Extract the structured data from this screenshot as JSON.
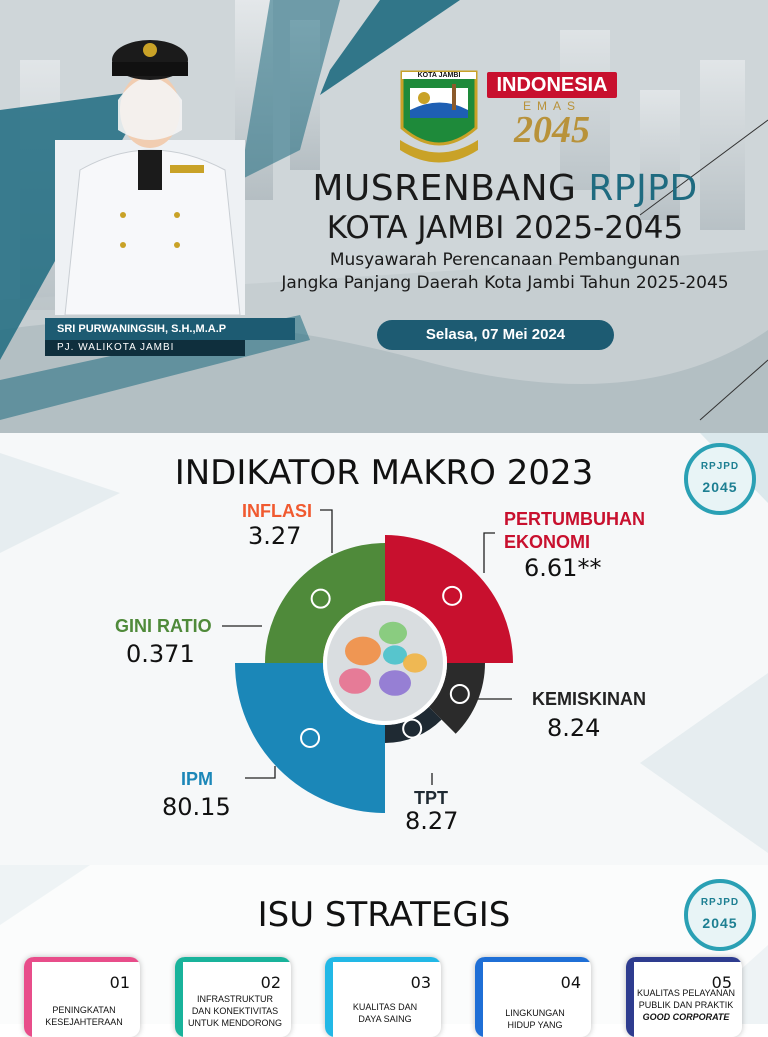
{
  "hero": {
    "title_main": "MUSRENBANG",
    "title_accent": "RPJPD",
    "title_line2": "KOTA JAMBI 2025-2045",
    "subtitle_line1": "Musyawarah Perencanaan Pembangunan",
    "subtitle_line2": "Jangka Panjang Daerah Kota Jambi Tahun 2025-2045",
    "date": "Selasa, 07 Mei 2024",
    "person_name": "SRI PURWANINGSIH, S.H.,M.A.P",
    "person_role": "PJ. WALIKOTA JAMBI",
    "crest_text": "KOTA JAMBI",
    "emas_word": "INDONESIA",
    "emas_sub": "EMAS",
    "emas_year": "2045"
  },
  "makro": {
    "title": "INDIKATOR MAKRO 2023",
    "badge_text": "RPJPD",
    "badge_year": "2045"
  },
  "chart_data": {
    "type": "pie",
    "title": "INDIKATOR MAKRO 2023",
    "indicators": [
      {
        "name": "INFLASI",
        "value": "3.27",
        "color": "#f05a30",
        "icon": "chart-money-icon"
      },
      {
        "name": "PERTUMBUHAN EKONOMI",
        "name_line1": "PERTUMBUHAN",
        "name_line2": "EKONOMI",
        "value": "6.61**",
        "color": "#c8102e",
        "icon": "growth-icon"
      },
      {
        "name": "KEMISKINAN",
        "value": "8.24",
        "color": "#2b2b2b",
        "icon": "poverty-icon"
      },
      {
        "name": "TPT",
        "value": "8.27",
        "color": "#1f2a33",
        "icon": "briefcase-icon"
      },
      {
        "name": "IPM",
        "value": "80.15",
        "color": "#1b87b8",
        "icon": "people-icon"
      },
      {
        "name": "GINI RATIO",
        "value": "0.371",
        "color": "#4f8a3a",
        "icon": "balance-icon"
      }
    ]
  },
  "isu": {
    "title": "ISU STRATEGIS",
    "items": [
      {
        "num": "01",
        "line1": "PENINGKATAN",
        "line2": "KESEJAHTERAAN",
        "color": "#e84d8a"
      },
      {
        "num": "02",
        "line1": "INFRASTRUKTUR",
        "line2": "DAN KONEKTIVITAS",
        "line3": "UNTUK MENDORONG",
        "color": "#19b39b"
      },
      {
        "num": "03",
        "line1": "KUALITAS DAN",
        "line2": "DAYA SAING",
        "color": "#22b8e6"
      },
      {
        "num": "04",
        "line1": "LINGKUNGAN",
        "line2": "HIDUP YANG",
        "color": "#1f6fd6"
      },
      {
        "num": "05",
        "line1": "KUALITAS PELAYANAN",
        "line2": "PUBLIK DAN PRAKTIK",
        "line3": "GOOD CORPORATE",
        "color": "#2e3c8f"
      }
    ]
  }
}
